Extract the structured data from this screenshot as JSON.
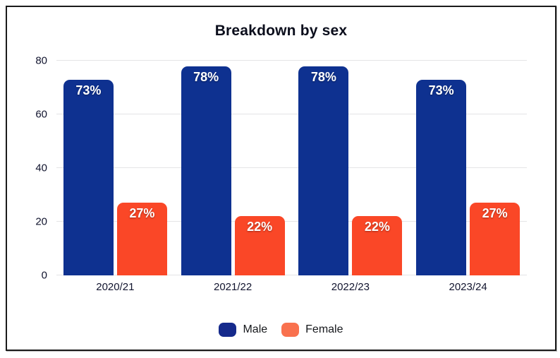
{
  "chart_data": {
    "type": "bar",
    "title": "Breakdown by sex",
    "categories": [
      "2020/21",
      "2021/22",
      "2022/23",
      "2023/24"
    ],
    "series": [
      {
        "name": "Male",
        "color": "#0E3190",
        "legend_color": "#152A8C",
        "values": [
          73,
          78,
          78,
          73
        ],
        "labels": [
          "73%",
          "78%",
          "78%",
          "73%"
        ]
      },
      {
        "name": "Female",
        "color": "#FA4727",
        "legend_color": "#F9714E",
        "values": [
          27,
          22,
          22,
          27
        ],
        "labels": [
          "27%",
          "22%",
          "22%",
          "27%"
        ]
      }
    ],
    "ylim": [
      0,
      80
    ],
    "y_ticks": [
      0,
      20,
      40,
      60,
      80
    ],
    "grid": "horizontal",
    "legend_position": "bottom",
    "xlabel": "",
    "ylabel": ""
  },
  "style": {
    "background": "#FFFFFF",
    "border_color": "#1A1A1A",
    "grid_color": "#E4E4E6",
    "axis_text_color": "#11142E",
    "title_color": "#0B0E1C",
    "bar_label_color": "#FFFFFF"
  }
}
